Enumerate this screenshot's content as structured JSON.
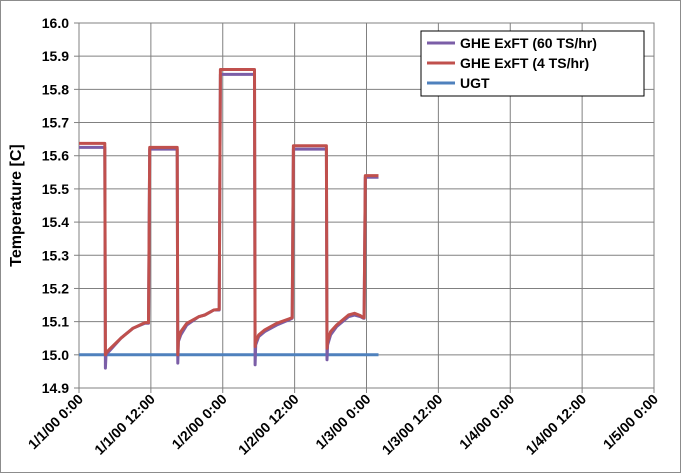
{
  "chart_data": {
    "type": "line",
    "title": "",
    "xlabel": "",
    "ylabel": "Temperature [C]",
    "ylim": [
      14.9,
      16.0
    ],
    "y_ticks": [
      "16.0",
      "15.9",
      "15.8",
      "15.7",
      "15.6",
      "15.5",
      "15.4",
      "15.3",
      "15.2",
      "15.1",
      "15.0",
      "14.9"
    ],
    "xlim": [
      0,
      96
    ],
    "x_ticks": [
      {
        "label": "1/1/00 0:00",
        "x": 0
      },
      {
        "label": "1/1/00 12:00",
        "x": 12
      },
      {
        "label": "1/2/00 0:00",
        "x": 24
      },
      {
        "label": "1/2/00 12:00",
        "x": 36
      },
      {
        "label": "1/3/00 0:00",
        "x": 48
      },
      {
        "label": "1/3/00 12:00",
        "x": 60
      },
      {
        "label": "1/4/00 0:00",
        "x": 72
      },
      {
        "label": "1/4/00 12:00",
        "x": 84
      },
      {
        "label": "1/5/00 0:00",
        "x": 96
      }
    ],
    "grid": true,
    "legend_position": "top-right",
    "series": [
      {
        "name": "GHE ExFT (60 TS/hr)",
        "color": "#7b5ea7",
        "points": [
          [
            0,
            15.625
          ],
          [
            4.3,
            15.625
          ],
          [
            4.4,
            14.96
          ],
          [
            4.5,
            15.0
          ],
          [
            5,
            15.01
          ],
          [
            7,
            15.05
          ],
          [
            9,
            15.08
          ],
          [
            11,
            15.095
          ],
          [
            11.6,
            15.095
          ],
          [
            11.8,
            15.62
          ],
          [
            16.4,
            15.62
          ],
          [
            16.5,
            14.975
          ],
          [
            16.6,
            15.04
          ],
          [
            17,
            15.06
          ],
          [
            18,
            15.09
          ],
          [
            20,
            15.115
          ],
          [
            21,
            15.12
          ],
          [
            22,
            15.13
          ],
          [
            22.5,
            15.135
          ],
          [
            23.4,
            15.135
          ],
          [
            23.6,
            15.845
          ],
          [
            29.3,
            15.845
          ],
          [
            29.4,
            14.97
          ],
          [
            29.5,
            15.03
          ],
          [
            30,
            15.055
          ],
          [
            31,
            15.07
          ],
          [
            33,
            15.09
          ],
          [
            35,
            15.105
          ],
          [
            35.6,
            15.11
          ],
          [
            35.8,
            15.62
          ],
          [
            41.3,
            15.62
          ],
          [
            41.4,
            14.985
          ],
          [
            41.5,
            15.03
          ],
          [
            42,
            15.06
          ],
          [
            43,
            15.085
          ],
          [
            45,
            15.115
          ],
          [
            46,
            15.12
          ],
          [
            47,
            15.115
          ],
          [
            47.5,
            15.11
          ],
          [
            47.6,
            15.11
          ],
          [
            47.8,
            15.535
          ],
          [
            50,
            15.535
          ]
        ]
      },
      {
        "name": "GHE ExFT (4 TS/hr)",
        "color": "#c0504d",
        "points": [
          [
            0,
            15.637
          ],
          [
            4.3,
            15.637
          ],
          [
            4.4,
            15.0
          ],
          [
            4.5,
            15.005
          ],
          [
            5,
            15.015
          ],
          [
            7,
            15.05
          ],
          [
            9,
            15.08
          ],
          [
            11,
            15.097
          ],
          [
            11.6,
            15.097
          ],
          [
            11.8,
            15.625
          ],
          [
            16.4,
            15.625
          ],
          [
            16.5,
            15.0
          ],
          [
            16.6,
            15.045
          ],
          [
            17,
            15.07
          ],
          [
            18,
            15.095
          ],
          [
            20,
            15.115
          ],
          [
            21,
            15.12
          ],
          [
            22,
            15.13
          ],
          [
            22.5,
            15.135
          ],
          [
            23.4,
            15.137
          ],
          [
            23.6,
            15.86
          ],
          [
            29.3,
            15.86
          ],
          [
            29.4,
            15.025
          ],
          [
            29.5,
            15.04
          ],
          [
            30,
            15.06
          ],
          [
            31,
            15.075
          ],
          [
            33,
            15.095
          ],
          [
            35,
            15.108
          ],
          [
            35.6,
            15.112
          ],
          [
            35.8,
            15.63
          ],
          [
            41.3,
            15.63
          ],
          [
            41.4,
            15.02
          ],
          [
            41.5,
            15.04
          ],
          [
            42,
            15.07
          ],
          [
            43,
            15.09
          ],
          [
            45,
            15.12
          ],
          [
            46,
            15.125
          ],
          [
            47,
            15.118
          ],
          [
            47.5,
            15.112
          ],
          [
            47.6,
            15.112
          ],
          [
            47.8,
            15.54
          ],
          [
            50,
            15.54
          ]
        ]
      },
      {
        "name": "UGT",
        "color": "#4f81bd",
        "points": [
          [
            0,
            15.0
          ],
          [
            50,
            15.0
          ]
        ]
      }
    ]
  }
}
